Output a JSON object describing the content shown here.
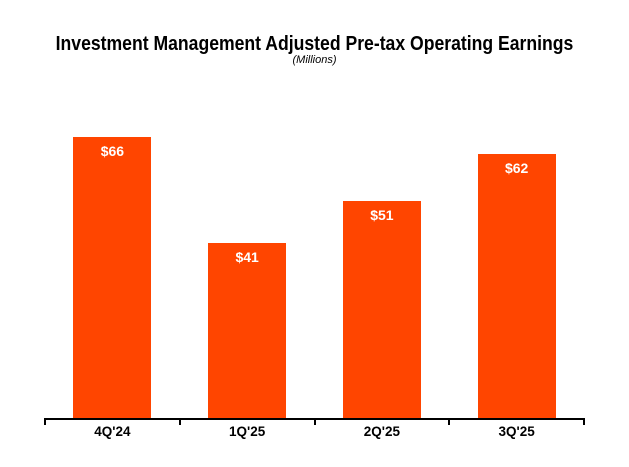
{
  "header": {
    "title": "Investment Management Adjusted Pre-tax Operating Earnings",
    "subtitle": "(Millions)"
  },
  "chart_data": {
    "type": "bar",
    "title": "Investment Management Adjusted Pre-tax Operating Earnings",
    "subtitle": "(Millions)",
    "categories": [
      "4Q'24",
      "1Q'25",
      "2Q'25",
      "3Q'25"
    ],
    "values": [
      66,
      41,
      51,
      62
    ],
    "data_labels": [
      "$66",
      "$41",
      "$51",
      "$62"
    ],
    "xlabel": "",
    "ylabel": "",
    "ylim": [
      0,
      70
    ],
    "grid": false,
    "legend": "none",
    "y_axis_visible": false,
    "bar_color": "#FF4500",
    "data_label_color": "#FFFFFF",
    "axis_color": "#000000",
    "text_color": "#000000"
  }
}
